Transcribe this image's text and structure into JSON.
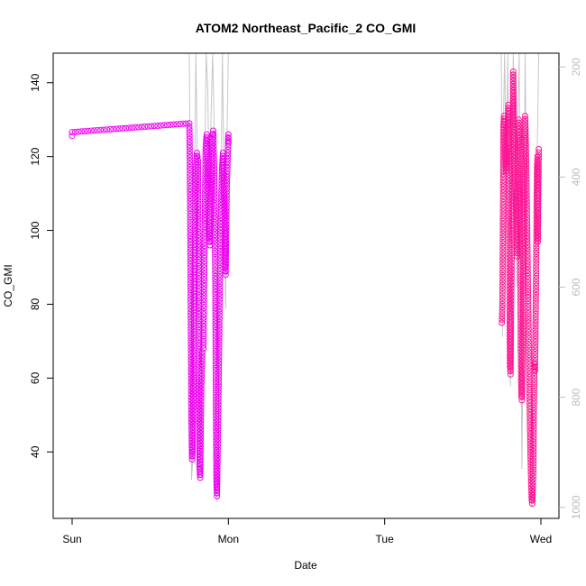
{
  "chart_data": {
    "type": "scatter",
    "title": "ATOM2 Northeast_Pacific_2 CO_GMI",
    "xlabel": "Date",
    "ylabel": "CO_GMI",
    "x_axis_type": "date",
    "xlim": [
      "Sun 00:00",
      "Wed 00:00"
    ],
    "x_ticks": [
      "Sun",
      "Mon",
      "Tue",
      "Wed"
    ],
    "ylim": [
      22,
      148
    ],
    "y_ticks": [
      40,
      60,
      80,
      100,
      120,
      140
    ],
    "secondary_y_axis": {
      "label": "",
      "reversed": true,
      "lim": [
        175,
        1020
      ],
      "ticks": [
        200,
        400,
        600,
        800,
        1000
      ],
      "color": "#bdbdbd"
    },
    "grid": false,
    "colors": {
      "co_points_early": "#ee00ee",
      "co_points_late": "#ff1493",
      "pressure_line": "#c8c8c8"
    },
    "series": [
      {
        "marker": "open-circle",
        "points": [
          [
            "Sun 00:00",
            125.6
          ],
          [
            "Sun 00:00",
            126.6
          ],
          [
            "Sun 18:00",
            129.0
          ],
          [
            "Sun 18:05",
            118.0
          ],
          [
            "Sun 18:10",
            96.0
          ],
          [
            "Sun 18:15",
            70.0
          ],
          [
            "Sun 18:20",
            48.0
          ],
          [
            "Sun 18:25",
            38.0
          ],
          [
            "Sun 18:30",
            40.0
          ],
          [
            "Sun 18:40",
            63.0
          ],
          [
            "Sun 18:50",
            93.0
          ],
          [
            "Sun 19:00",
            116.0
          ],
          [
            "Sun 19:10",
            121.0
          ],
          [
            "Sun 19:20",
            119.0
          ],
          [
            "Sun 19:25",
            92.0
          ],
          [
            "Sun 19:30",
            60.0
          ],
          [
            "Sun 19:35",
            36.0
          ],
          [
            "Sun 19:40",
            33.0
          ],
          [
            "Sun 19:50",
            58.0
          ],
          [
            "Sun 20:00",
            67.0
          ],
          [
            "Sun 20:10",
            68.0
          ],
          [
            "Sun 20:20",
            95.0
          ],
          [
            "Sun 20:30",
            122.0
          ],
          [
            "Sun 20:40",
            126.0
          ],
          [
            "Sun 20:50",
            118.0
          ],
          [
            "Sun 21:00",
            98.0
          ],
          [
            "Sun 21:10",
            96.0
          ],
          [
            "Sun 21:20",
            108.0
          ],
          [
            "Sun 21:30",
            125.0
          ],
          [
            "Sun 21:40",
            127.0
          ],
          [
            "Sun 21:50",
            116.0
          ],
          [
            "Sun 22:00",
            85.0
          ],
          [
            "Sun 22:05",
            55.0
          ],
          [
            "Sun 22:10",
            32.0
          ],
          [
            "Sun 22:15",
            28.0
          ],
          [
            "Sun 22:30",
            58.0
          ],
          [
            "Sun 22:45",
            95.0
          ],
          [
            "Sun 23:00",
            116.0
          ],
          [
            "Sun 23:10",
            121.0
          ],
          [
            "Sun 23:20",
            110.0
          ],
          [
            "Sun 23:25",
            105.0
          ],
          [
            "Sun 23:30",
            90.0
          ],
          [
            "Sun 23:35",
            88.0
          ],
          [
            "Sun 23:45",
            112.0
          ],
          [
            "Sun 23:55",
            121.0
          ],
          [
            "Mon 00:00",
            126.0
          ],
          [
            "Mon 00:00",
            124.0
          ]
        ]
      },
      {
        "marker": "open-circle",
        "points": [
          [
            "Tue 18:00",
            75.0
          ],
          [
            "Tue 18:05",
            80.0
          ],
          [
            "Tue 18:10",
            100.0
          ],
          [
            "Tue 18:15",
            128.0
          ],
          [
            "Tue 18:20",
            131.0
          ],
          [
            "Tue 18:30",
            121.0
          ],
          [
            "Tue 18:40",
            116.0
          ],
          [
            "Tue 18:50",
            125.0
          ],
          [
            "Tue 19:00",
            134.0
          ],
          [
            "Tue 19:05",
            122.0
          ],
          [
            "Tue 19:10",
            90.0
          ],
          [
            "Tue 19:15",
            63.0
          ],
          [
            "Tue 19:20",
            61.0
          ],
          [
            "Tue 19:30",
            93.0
          ],
          [
            "Tue 19:40",
            126.0
          ],
          [
            "Tue 19:45",
            143.0
          ],
          [
            "Tue 19:50",
            128.0
          ],
          [
            "Tue 20:00",
            117.0
          ],
          [
            "Tue 20:10",
            107.0
          ],
          [
            "Tue 20:20",
            93.0
          ],
          [
            "Tue 20:30",
            112.0
          ],
          [
            "Tue 20:35",
            130.0
          ],
          [
            "Tue 20:45",
            120.0
          ],
          [
            "Tue 20:50",
            95.0
          ],
          [
            "Tue 20:55",
            68.0
          ],
          [
            "Tue 21:00",
            55.0
          ],
          [
            "Tue 21:05",
            54.0
          ],
          [
            "Tue 21:15",
            78.0
          ],
          [
            "Tue 21:25",
            111.0
          ],
          [
            "Tue 21:35",
            131.0
          ],
          [
            "Tue 21:45",
            118.0
          ],
          [
            "Tue 21:55",
            96.0
          ],
          [
            "Tue 22:05",
            75.0
          ],
          [
            "Tue 22:15",
            55.0
          ],
          [
            "Tue 22:25",
            38.0
          ],
          [
            "Tue 22:35",
            27.0
          ],
          [
            "Tue 22:40",
            26.0
          ],
          [
            "Tue 22:45",
            30.0
          ],
          [
            "Tue 22:50",
            36.0
          ],
          [
            "Tue 22:55",
            52.0
          ],
          [
            "Tue 23:00",
            64.0
          ],
          [
            "Tue 23:05",
            62.0
          ],
          [
            "Tue 23:10",
            74.0
          ],
          [
            "Tue 23:15",
            85.0
          ],
          [
            "Tue 23:20",
            104.0
          ],
          [
            "Tue 23:25",
            118.0
          ],
          [
            "Tue 23:28",
            120.0
          ],
          [
            "Tue 23:30",
            102.0
          ],
          [
            "Tue 23:32",
            97.0
          ],
          [
            "Tue 23:35",
            108.0
          ],
          [
            "Tue 23:40",
            122.0
          ]
        ]
      }
    ],
    "pressure_line": {
      "axis": "secondary",
      "points": [
        [
          "Sun 18:00",
          175
        ],
        [
          "Sun 18:10",
          480
        ],
        [
          "Sun 18:20",
          950
        ],
        [
          "Sun 18:30",
          920
        ],
        [
          "Sun 18:45",
          520
        ],
        [
          "Sun 19:00",
          175
        ],
        [
          "Sun 19:10",
          300
        ],
        [
          "Sun 19:25",
          610
        ],
        [
          "Sun 19:40",
          920
        ],
        [
          "Sun 20:00",
          760
        ],
        [
          "Sun 20:20",
          420
        ],
        [
          "Sun 20:35",
          175
        ],
        [
          "Sun 20:50",
          240
        ],
        [
          "Sun 21:05",
          470
        ],
        [
          "Sun 21:20",
          290
        ],
        [
          "Sun 21:35",
          175
        ],
        [
          "Sun 21:50",
          320
        ],
        [
          "Sun 22:05",
          700
        ],
        [
          "Sun 22:15",
          990
        ],
        [
          "Sun 22:30",
          820
        ],
        [
          "Sun 22:50",
          450
        ],
        [
          "Sun 23:05",
          175
        ],
        [
          "Sun 23:20",
          420
        ],
        [
          "Sun 23:35",
          640
        ],
        [
          "Sun 23:50",
          290
        ],
        [
          "Mon 00:00",
          175
        ],
        [
          "Tue 17:55",
          175
        ],
        [
          "Tue 18:05",
          690
        ],
        [
          "Tue 18:15",
          300
        ],
        [
          "Tue 18:25",
          175
        ],
        [
          "Tue 18:40",
          380
        ],
        [
          "Tue 18:55",
          175
        ],
        [
          "Tue 19:10",
          720
        ],
        [
          "Tue 19:20",
          780
        ],
        [
          "Tue 19:35",
          420
        ],
        [
          "Tue 19:45",
          175
        ],
        [
          "Tue 20:00",
          330
        ],
        [
          "Tue 20:15",
          600
        ],
        [
          "Tue 20:30",
          270
        ],
        [
          "Tue 20:40",
          175
        ],
        [
          "Tue 20:55",
          620
        ],
        [
          "Tue 21:05",
          930
        ],
        [
          "Tue 21:20",
          600
        ],
        [
          "Tue 21:35",
          175
        ],
        [
          "Tue 21:50",
          460
        ],
        [
          "Tue 22:10",
          820
        ],
        [
          "Tue 22:35",
          1000
        ],
        [
          "Tue 22:50",
          860
        ],
        [
          "Tue 23:05",
          700
        ],
        [
          "Tue 23:20",
          420
        ],
        [
          "Tue 23:30",
          300
        ],
        [
          "Tue 23:40",
          175
        ]
      ]
    }
  }
}
